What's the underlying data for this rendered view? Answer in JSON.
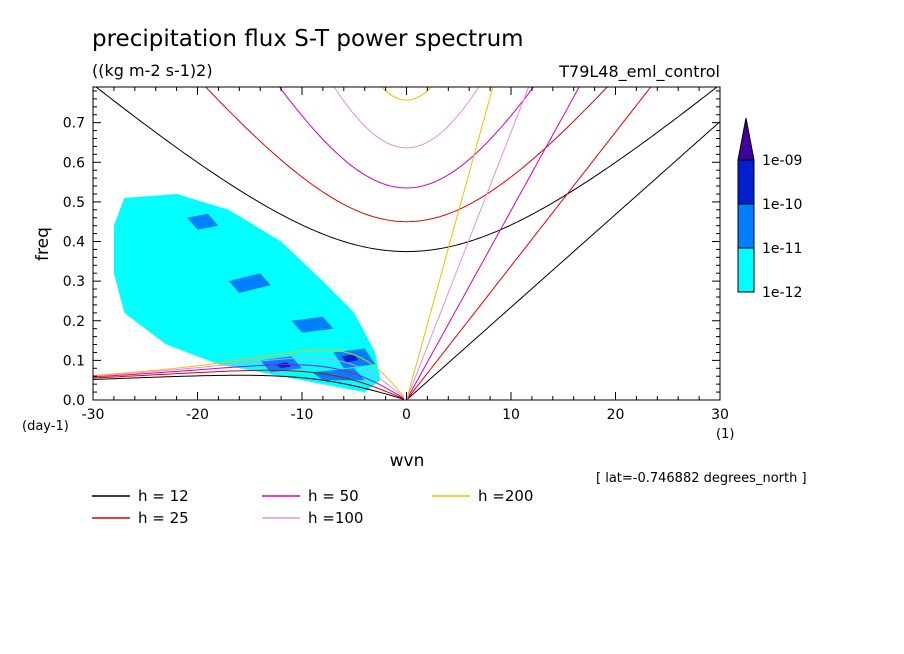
{
  "chart_data": {
    "type": "contour",
    "title": "precipitation flux S-T power spectrum",
    "units": "((kg m-2 s-1)2)",
    "run_label": "T79L48_eml_control",
    "xlabel": "wvn",
    "ylabel": "freq",
    "x_unit": "(1)",
    "y_unit": "(day-1)",
    "xlim": [
      -30,
      30
    ],
    "ylim": [
      0,
      0.79
    ],
    "x_ticks": [
      -30,
      -20,
      -10,
      0,
      10,
      20,
      30
    ],
    "x_tick_labels": [
      "-30",
      "-20",
      "-10",
      "0",
      "10",
      "20",
      "30"
    ],
    "y_ticks": [
      0.0,
      0.1,
      0.2,
      0.3,
      0.4,
      0.5,
      0.6,
      0.7
    ],
    "y_tick_labels": [
      "0.0",
      "0.1",
      "0.2",
      "0.3",
      "0.4",
      "0.5",
      "0.6",
      "0.7"
    ],
    "lat_note": "[ lat=-0.746882 degrees_north ]",
    "colorbar": {
      "levels": [
        "1e-12",
        "1e-11",
        "1e-10",
        "1e-09"
      ],
      "colors": [
        "#00ffff",
        "#0080ff",
        "#0020d0",
        "#4000a0"
      ]
    },
    "dispersion_curves": [
      {
        "name": "h = 12",
        "h": 12,
        "color": "#000000"
      },
      {
        "name": "h = 25",
        "h": 25,
        "color": "#e00000"
      },
      {
        "name": "h = 50",
        "h": 50,
        "color": "#d000c0"
      },
      {
        "name": "h =100",
        "h": 100,
        "color": "#e090e0"
      },
      {
        "name": "h =200",
        "h": 200,
        "color": "#f0c000"
      }
    ],
    "power_regions": [
      {
        "level": "1e-12",
        "polygon": [
          [
            -27,
            0.51
          ],
          [
            -22,
            0.52
          ],
          [
            -17,
            0.48
          ],
          [
            -12,
            0.4
          ],
          [
            -8,
            0.3
          ],
          [
            -5,
            0.22
          ],
          [
            -3,
            0.12
          ],
          [
            -2.5,
            0.05
          ],
          [
            -4,
            0.02
          ],
          [
            -8,
            0.04
          ],
          [
            -12,
            0.06
          ],
          [
            -18,
            0.09
          ],
          [
            -23,
            0.14
          ],
          [
            -27,
            0.22
          ],
          [
            -28,
            0.32
          ],
          [
            -28,
            0.44
          ]
        ]
      },
      {
        "level": "1e-11",
        "polygon": [
          [
            -21,
            0.46
          ],
          [
            -19,
            0.47
          ],
          [
            -18,
            0.44
          ],
          [
            -20,
            0.43
          ]
        ]
      },
      {
        "level": "1e-11",
        "polygon": [
          [
            -17,
            0.3
          ],
          [
            -14,
            0.32
          ],
          [
            -13,
            0.29
          ],
          [
            -16,
            0.27
          ]
        ]
      },
      {
        "level": "1e-11",
        "polygon": [
          [
            -11,
            0.2
          ],
          [
            -8,
            0.21
          ],
          [
            -7,
            0.18
          ],
          [
            -10,
            0.17
          ]
        ]
      },
      {
        "level": "1e-11",
        "polygon": [
          [
            -7,
            0.12
          ],
          [
            -4,
            0.13
          ],
          [
            -3,
            0.09
          ],
          [
            -6,
            0.08
          ]
        ]
      },
      {
        "level": "1e-11",
        "polygon": [
          [
            -14,
            0.1
          ],
          [
            -11,
            0.11
          ],
          [
            -10,
            0.08
          ],
          [
            -13,
            0.07
          ]
        ]
      },
      {
        "level": "1e-11",
        "polygon": [
          [
            -9,
            0.07
          ],
          [
            -5,
            0.08
          ],
          [
            -4,
            0.05
          ],
          [
            -8,
            0.05
          ]
        ]
      },
      {
        "level": "1e-10",
        "polygon": [
          [
            -6.2,
            0.11
          ],
          [
            -5,
            0.115
          ],
          [
            -4.6,
            0.1
          ],
          [
            -5.8,
            0.095
          ]
        ]
      },
      {
        "level": "1e-10",
        "polygon": [
          [
            -12.5,
            0.09
          ],
          [
            -11.5,
            0.095
          ],
          [
            -11,
            0.085
          ],
          [
            -12,
            0.08
          ]
        ]
      }
    ]
  }
}
